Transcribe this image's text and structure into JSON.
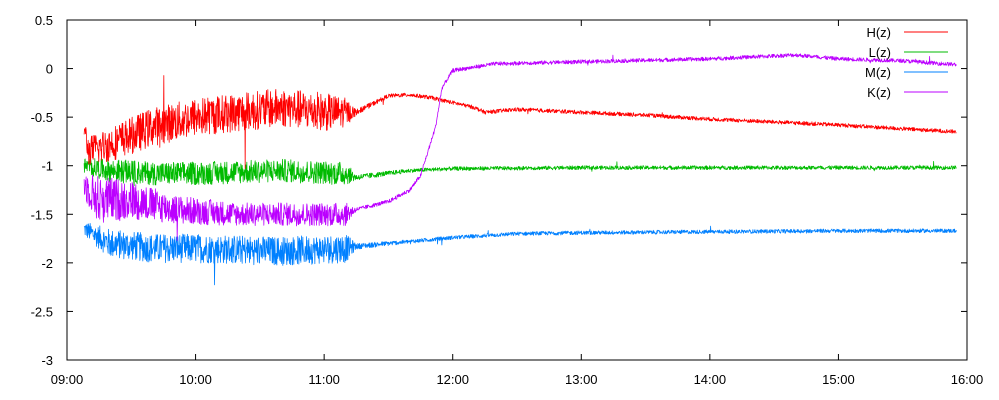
{
  "chart_data": {
    "type": "line",
    "title": "",
    "xlabel": "",
    "ylabel": "",
    "xlim": [
      "09:00",
      "16:00"
    ],
    "ylim": [
      -3,
      0.5
    ],
    "x_ticks": [
      "09:00",
      "10:00",
      "11:00",
      "12:00",
      "13:00",
      "14:00",
      "15:00",
      "16:00"
    ],
    "y_ticks": [
      "0.5",
      "0",
      "-0.5",
      "-1",
      "-1.5",
      "-2",
      "-2.5",
      "-3"
    ],
    "grid": false,
    "legend_position": "top-right",
    "series": [
      {
        "name": "H(z)",
        "color": "#ff0000",
        "x": [
          "09:08",
          "09:10",
          "09:20",
          "09:40",
          "10:00",
          "10:20",
          "10:40",
          "11:00",
          "11:10",
          "11:15",
          "11:30",
          "11:40",
          "11:50",
          "12:00",
          "12:10",
          "12:15",
          "12:30",
          "13:00",
          "13:30",
          "14:00",
          "14:30",
          "15:00",
          "15:30",
          "15:55"
        ],
        "values": [
          -0.6,
          -0.85,
          -0.78,
          -0.6,
          -0.5,
          -0.45,
          -0.4,
          -0.45,
          -0.45,
          -0.45,
          -0.28,
          -0.27,
          -0.3,
          -0.35,
          -0.4,
          -0.45,
          -0.42,
          -0.45,
          -0.48,
          -0.52,
          -0.55,
          -0.58,
          -0.62,
          -0.65
        ],
        "noise": [
          0.1,
          0.15,
          0.18,
          0.2,
          0.2,
          0.2,
          0.2,
          0.2,
          0.15,
          0.03,
          0.02,
          0.02,
          0.02,
          0.02,
          0.02,
          0.02,
          0.02,
          0.02,
          0.02,
          0.02,
          0.02,
          0.02,
          0.02,
          0.02
        ]
      },
      {
        "name": "L(z)",
        "color": "#00bb00",
        "x": [
          "09:08",
          "09:20",
          "09:40",
          "10:00",
          "10:40",
          "11:10",
          "11:15",
          "11:40",
          "12:00",
          "13:00",
          "14:00",
          "15:00",
          "15:55"
        ],
        "values": [
          -1.0,
          -1.05,
          -1.08,
          -1.08,
          -1.05,
          -1.08,
          -1.12,
          -1.05,
          -1.03,
          -1.02,
          -1.02,
          -1.02,
          -1.02
        ],
        "noise": [
          0.08,
          0.12,
          0.12,
          0.12,
          0.12,
          0.12,
          0.03,
          0.02,
          0.02,
          0.02,
          0.02,
          0.02,
          0.02
        ]
      },
      {
        "name": "M(z)",
        "color": "#0080ff",
        "x": [
          "09:08",
          "09:20",
          "09:40",
          "10:00",
          "10:40",
          "11:10",
          "11:15",
          "11:40",
          "12:00",
          "12:30",
          "13:00",
          "14:00",
          "15:00",
          "15:55"
        ],
        "values": [
          -1.65,
          -1.8,
          -1.85,
          -1.85,
          -1.88,
          -1.85,
          -1.83,
          -1.78,
          -1.74,
          -1.7,
          -1.69,
          -1.68,
          -1.67,
          -1.67
        ],
        "noise": [
          0.08,
          0.15,
          0.15,
          0.15,
          0.15,
          0.15,
          0.03,
          0.02,
          0.02,
          0.02,
          0.02,
          0.02,
          0.02,
          0.02
        ]
      },
      {
        "name": "K(z)",
        "color": "#bb00ff",
        "x": [
          "09:08",
          "09:15",
          "09:30",
          "09:50",
          "10:20",
          "10:50",
          "11:10",
          "11:15",
          "11:30",
          "11:40",
          "11:45",
          "11:52",
          "11:55",
          "12:00",
          "12:20",
          "13:00",
          "14:00",
          "14:40",
          "15:00",
          "15:30",
          "15:55"
        ],
        "values": [
          -1.2,
          -1.35,
          -1.35,
          -1.45,
          -1.5,
          -1.5,
          -1.5,
          -1.45,
          -1.37,
          -1.25,
          -1.1,
          -0.6,
          -0.2,
          -0.02,
          0.05,
          0.07,
          0.1,
          0.14,
          0.1,
          0.08,
          0.04
        ],
        "noise": [
          0.15,
          0.25,
          0.2,
          0.15,
          0.12,
          0.12,
          0.12,
          0.02,
          0.02,
          0.02,
          0.02,
          0.02,
          0.02,
          0.02,
          0.02,
          0.02,
          0.02,
          0.02,
          0.02,
          0.02,
          0.02
        ]
      }
    ]
  }
}
